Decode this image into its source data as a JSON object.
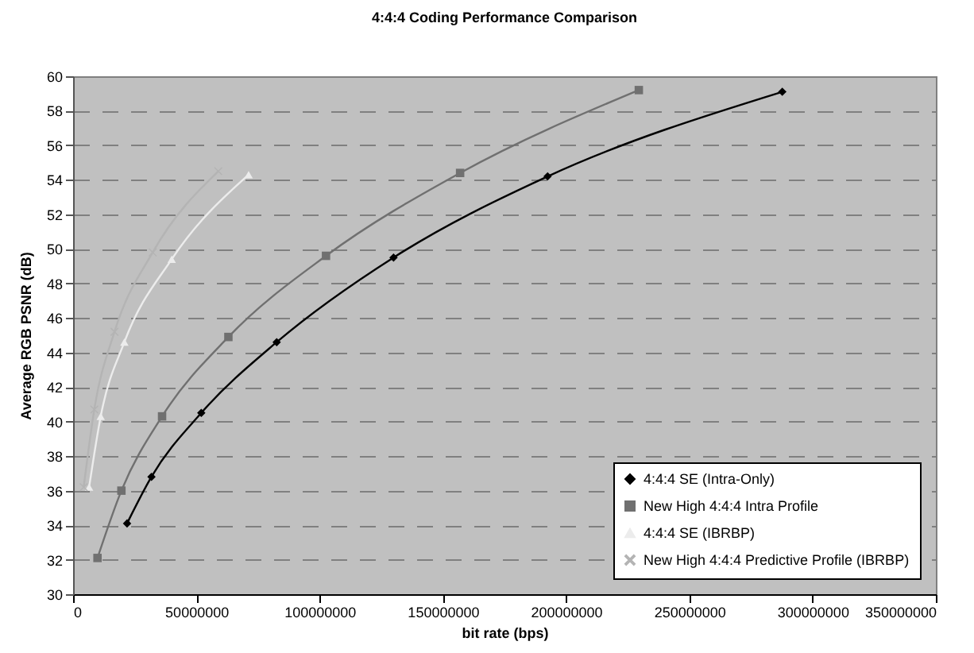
{
  "chart_data": {
    "type": "line",
    "title": "4:4:4 Coding Performance Comparison",
    "xlabel": "bit rate (bps)",
    "ylabel": "Average RGB PSNR (dB)",
    "series": [
      {
        "name": "4:4:4 SE (Intra-Only)",
        "color": "#000000",
        "marker": "diamond",
        "x": [
          21900000,
          31800000,
          52000000,
          82600000,
          130000000,
          192500000,
          287700000
        ],
        "values": [
          34.1,
          36.8,
          40.5,
          44.6,
          49.5,
          54.2,
          59.1
        ]
      },
      {
        "name": "New High 4:4:4 Intra Profile",
        "color": "#707070",
        "marker": "square",
        "x": [
          9900000,
          19600000,
          36100000,
          63000000,
          102600000,
          157000000,
          229500000
        ],
        "values": [
          32.1,
          36.0,
          40.3,
          44.9,
          49.6,
          54.4,
          59.2
        ]
      },
      {
        "name": "4:4:4 SE (IBRBP)",
        "color": "#ececec",
        "marker": "triangle",
        "x": [
          6500000,
          11200000,
          20800000,
          40000000,
          71200000
        ],
        "values": [
          36.2,
          40.3,
          44.6,
          49.4,
          54.3
        ]
      },
      {
        "name": "New High 4:4:4 Predictive Profile (IBRBP)",
        "color": "#b4b4b4",
        "marker": "cross",
        "x": [
          4300000,
          8600000,
          16800000,
          32300000,
          58900000
        ],
        "values": [
          36.2,
          40.7,
          45.2,
          49.8,
          54.5
        ]
      }
    ],
    "xlim": [
      0,
      350000000
    ],
    "xticks": [
      0,
      50000000,
      100000000,
      150000000,
      200000000,
      250000000,
      300000000,
      350000000
    ],
    "ylim": [
      30,
      60
    ],
    "yticks": [
      30,
      32,
      34,
      36,
      38,
      40,
      42,
      44,
      46,
      48,
      50,
      52,
      54,
      56,
      58,
      60
    ],
    "grid": "y",
    "legend": "bottom right",
    "line_style": "solid"
  }
}
